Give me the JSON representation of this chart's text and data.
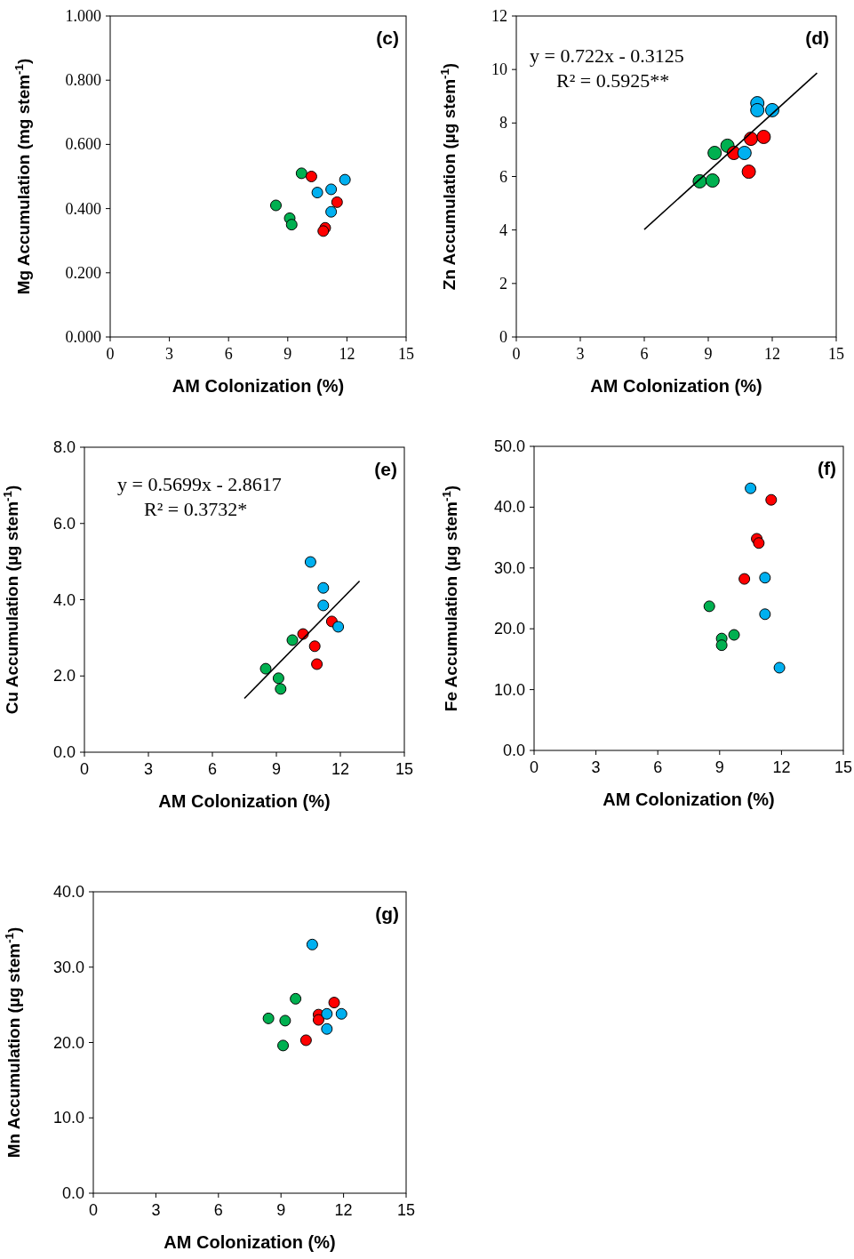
{
  "chart_data": [
    {
      "type": "scatter",
      "title": "(c)",
      "xlabel": "AM Colonization (%)",
      "ylabel": "Mg Accumulation (mg stem$^{-1}$)",
      "xlim": [
        0,
        15
      ],
      "xticks": [
        0,
        3,
        6,
        9,
        12,
        15
      ],
      "ylim": [
        0,
        1
      ],
      "yticks": [
        {
          "value": 0,
          "label": "0.000"
        },
        {
          "value": 0.2,
          "label": "0.200"
        },
        {
          "value": 0.4,
          "label": "0.400"
        },
        {
          "value": 0.6,
          "label": "0.600"
        },
        {
          "value": 0.8,
          "label": "0.800"
        },
        {
          "value": 1,
          "label": "1.000"
        }
      ],
      "marker": "circle",
      "series": [
        {
          "color": "#00b050",
          "x": [
            9.7,
            8.4,
            9.1,
            9.2
          ],
          "values": [
            0.51,
            0.41,
            0.37,
            0.35
          ]
        },
        {
          "color": "#ff0000",
          "x": [
            10.2,
            10.9,
            10.8,
            11.5
          ],
          "values": [
            0.5,
            0.34,
            0.33,
            0.42
          ]
        },
        {
          "color": "#00b0f0",
          "x": [
            10.5,
            11.2,
            11.9,
            11.2
          ],
          "values": [
            0.45,
            0.46,
            0.49,
            0.39
          ]
        }
      ]
    },
    {
      "type": "scatter",
      "title": "(d)",
      "xlabel": "AM Colonization (%)",
      "ylabel": "Zn Accumulation (µg stem$^{-1}$)",
      "xlim": [
        0,
        15
      ],
      "xticks": [
        0,
        3,
        6,
        9,
        12,
        15
      ],
      "ylim": [
        0,
        12
      ],
      "yticks": [
        0,
        2,
        4,
        6,
        8,
        10,
        12
      ],
      "marker": "circle",
      "annotations": [
        "y = 0.722x - 0.3125",
        "R² = 0.5925**"
      ],
      "series": [
        {
          "color": "#00b050",
          "x": [
            9.9,
            9.3,
            8.6,
            9.2
          ],
          "values": [
            7.15,
            6.88,
            5.82,
            5.85
          ]
        },
        {
          "color": "#ff0000",
          "x": [
            11.0,
            11.6,
            10.2,
            10.9
          ],
          "values": [
            7.41,
            7.48,
            6.88,
            6.18
          ]
        },
        {
          "color": "#00b0f0",
          "x": [
            11.3,
            11.3,
            12.0,
            10.7
          ],
          "values": [
            8.74,
            8.48,
            8.48,
            6.88
          ]
        },
        {
          "type": "line",
          "marker": "none",
          "color": "#000000",
          "x": [
            6,
            14.1
          ],
          "values": [
            4.02,
            9.87
          ]
        }
      ]
    },
    {
      "type": "scatter",
      "title": "(e)",
      "xlabel": "AM Colonization (%)",
      "ylabel": "Cu Accumulation (µg stem$^{-1}$)",
      "xlim": [
        0,
        15
      ],
      "xticks": [
        0,
        3,
        6,
        9,
        12,
        15
      ],
      "ylim": [
        0,
        8
      ],
      "yticks": [
        {
          "value": 0,
          "label": "0.0"
        },
        {
          "value": 2,
          "label": "2.0"
        },
        {
          "value": 4,
          "label": "4.0"
        },
        {
          "value": 6,
          "label": "6.0"
        },
        {
          "value": 8,
          "label": "8.0"
        }
      ],
      "marker": "circle",
      "annotations": [
        "y = 0.5699x - 2.8617",
        "R² = 0.3732*"
      ],
      "series": [
        {
          "color": "#00b050",
          "x": [
            9.75,
            8.5,
            9.1,
            9.2
          ],
          "values": [
            2.94,
            2.19,
            1.94,
            1.66
          ]
        },
        {
          "color": "#ff0000",
          "x": [
            11.6,
            10.25,
            10.8,
            10.9
          ],
          "values": [
            3.43,
            3.1,
            2.78,
            2.31
          ]
        },
        {
          "color": "#00b0f0",
          "x": [
            10.6,
            11.2,
            11.2,
            11.9
          ],
          "values": [
            4.99,
            4.31,
            3.85,
            3.29
          ]
        },
        {
          "type": "line",
          "marker": "none",
          "color": "#000000",
          "x": [
            7.5,
            12.9
          ],
          "values": [
            1.41,
            4.49
          ]
        }
      ]
    },
    {
      "type": "scatter",
      "title": "(f)",
      "xlabel": "AM Colonization (%)",
      "ylabel": "Fe Accumulation (µg stem$^{-1}$)",
      "xlim": [
        0,
        15
      ],
      "xticks": [
        0,
        3,
        6,
        9,
        12,
        15
      ],
      "ylim": [
        0,
        50
      ],
      "yticks": [
        {
          "value": 0,
          "label": "0.0"
        },
        {
          "value": 10,
          "label": "10.0"
        },
        {
          "value": 20,
          "label": "20.0"
        },
        {
          "value": 30,
          "label": "30.0"
        },
        {
          "value": 40,
          "label": "40.0"
        },
        {
          "value": 50,
          "label": "50.0"
        }
      ],
      "marker": "circle",
      "series": [
        {
          "color": "#00b050",
          "x": [
            8.5,
            9.7,
            9.1,
            9.1
          ],
          "values": [
            23.7,
            19,
            18.4,
            17.3
          ]
        },
        {
          "color": "#ff0000",
          "x": [
            11.5,
            10.8,
            10.9,
            10.2
          ],
          "values": [
            41.2,
            34.8,
            34.1,
            28.2
          ]
        },
        {
          "color": "#00b0f0",
          "x": [
            10.5,
            11.2,
            11.2,
            11.9
          ],
          "values": [
            43.1,
            28.4,
            22.4,
            13.6
          ]
        }
      ]
    },
    {
      "type": "scatter",
      "title": "(g)",
      "xlabel": "AM Colonization (%)",
      "ylabel": "Mn Accumulation (µg stem$^{-1}$)",
      "xlim": [
        0,
        15
      ],
      "xticks": [
        0,
        3,
        6,
        9,
        12,
        15
      ],
      "ylim": [
        0,
        40
      ],
      "yticks": [
        {
          "value": 0,
          "label": "0.0"
        },
        {
          "value": 10,
          "label": "10.0"
        },
        {
          "value": 20,
          "label": "20.0"
        },
        {
          "value": 30,
          "label": "30.0"
        },
        {
          "value": 40,
          "label": "40.0"
        }
      ],
      "marker": "circle",
      "series": [
        {
          "color": "#00b050",
          "x": [
            9.7,
            8.4,
            9.2,
            9.1
          ],
          "values": [
            25.8,
            23.2,
            22.9,
            19.6
          ]
        },
        {
          "color": "#ff0000",
          "x": [
            11.55,
            10.8,
            10.8,
            10.2
          ],
          "values": [
            25.3,
            23.7,
            23.0,
            20.3
          ]
        },
        {
          "color": "#00b0f0",
          "x": [
            10.5,
            11.2,
            11.9,
            11.2
          ],
          "values": [
            33.0,
            23.8,
            23.8,
            21.8
          ]
        }
      ]
    }
  ]
}
